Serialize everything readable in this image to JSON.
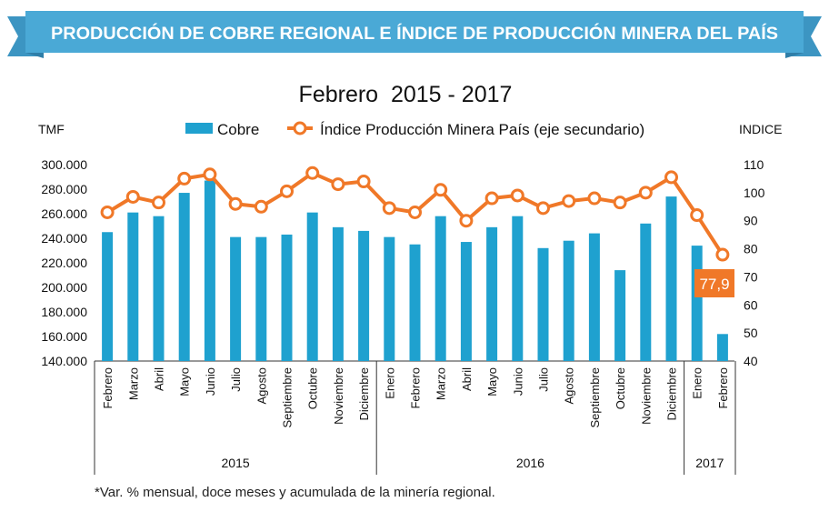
{
  "banner": {
    "title": "PRODUCCIÓN DE COBRE REGIONAL E ÍNDICE DE PRODUCCIÓN MINERA DEL PAÍS"
  },
  "colors": {
    "banner": "#4aa9d6",
    "banner_fold": "#2f7ea8",
    "bar": "#1fa1cf",
    "line": "#f07828",
    "callout": "#f07828"
  },
  "chart_data": {
    "type": "bar",
    "title": "Febrero  2015 - 2017",
    "left_axis_label": "TMF",
    "right_axis_label": "INDICE",
    "ylim": [
      140000,
      300000
    ],
    "y_ticks": [
      "300.000",
      "280.000",
      "260.000",
      "240.000",
      "220.000",
      "200.000",
      "180.000",
      "160.000",
      "140.000"
    ],
    "y2lim": [
      40,
      110
    ],
    "y2_ticks": [
      "110",
      "100",
      "90",
      "80",
      "70",
      "60",
      "50",
      "40"
    ],
    "categories": [
      "Febrero",
      "Marzo",
      "Abril",
      "Mayo",
      "Junio",
      "Julio",
      "Agosto",
      "Septiembre",
      "Octubre",
      "Noviembre",
      "Diciembre",
      "Enero",
      "Febrero",
      "Marzo",
      "Abril",
      "Mayo",
      "Junio",
      "Julio",
      "Agosto",
      "Septiembre",
      "Octubre",
      "Noviembre",
      "Diciembre",
      "Enero",
      "Febrero"
    ],
    "years": [
      {
        "label": "2015",
        "count": 11
      },
      {
        "label": "2016",
        "count": 12
      },
      {
        "label": "2017",
        "count": 2
      }
    ],
    "series": [
      {
        "name": "Cobre",
        "type": "bar",
        "axis": "left",
        "values": [
          245000,
          261000,
          258000,
          277000,
          287000,
          241000,
          241000,
          243000,
          261000,
          249000,
          246000,
          241000,
          235000,
          258000,
          237000,
          249000,
          258000,
          232000,
          238000,
          244000,
          214000,
          252000,
          274000,
          234000,
          162000
        ]
      },
      {
        "name": "Índice Producción Minera País (eje secundario)",
        "type": "line",
        "axis": "right",
        "values": [
          93,
          98.5,
          96.5,
          105,
          106.5,
          96,
          95,
          100.5,
          107,
          103,
          104,
          94.5,
          93,
          101,
          90,
          98,
          99,
          94.5,
          97,
          98,
          96.5,
          100,
          105.5,
          92,
          77.9
        ]
      }
    ],
    "callout": "77,9",
    "footnote": "*Var. % mensual, doce meses y acumulada de la minería regional."
  }
}
